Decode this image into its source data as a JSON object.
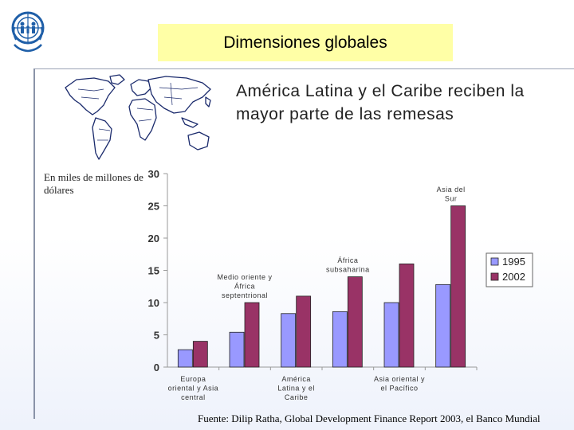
{
  "slide": {
    "title": "Dimensiones globales",
    "headline": "América Latina y el Caribe reciben la mayor parte de las remesas",
    "unit_label": "En miles de millones de dólares",
    "source": "Fuente: Dilip Ratha, Global Development Finance Report 2003, el Banco Mundial"
  },
  "icons": {
    "logo": "iom-logo-icon",
    "map": "world-map-icon"
  },
  "chart_data": {
    "type": "bar",
    "categories": [
      "Europa oriental y Asia central",
      "Medio oriente y África septentrional",
      "América Latina y el Caribe",
      "África subsaharina",
      "Asia oriental y el Pacífico",
      "Asia del Sur"
    ],
    "category_lines": [
      [
        "Europa",
        "oriental y Asia",
        "central"
      ],
      [
        "Medio oriente y",
        "África",
        "septentrional"
      ],
      [
        "América",
        "Latina y el",
        "Caribe"
      ],
      [
        "África",
        "subsaharina"
      ],
      [
        "Asia oriental y",
        "el Pacífico"
      ],
      [
        "Asia del",
        "Sur"
      ]
    ],
    "series": [
      {
        "name": "1995",
        "values": [
          2.7,
          5.4,
          8.3,
          8.6,
          10.0,
          12.8
        ],
        "color": "#9999ff"
      },
      {
        "name": "2002",
        "values": [
          4.0,
          10.0,
          11.0,
          14.0,
          16.0,
          25.0
        ],
        "color": "#993366"
      }
    ],
    "ylim": [
      0,
      30
    ],
    "yticks": [
      "0",
      "5",
      "10",
      "15",
      "20",
      "25",
      "30"
    ],
    "legend": "right",
    "grid": false
  }
}
